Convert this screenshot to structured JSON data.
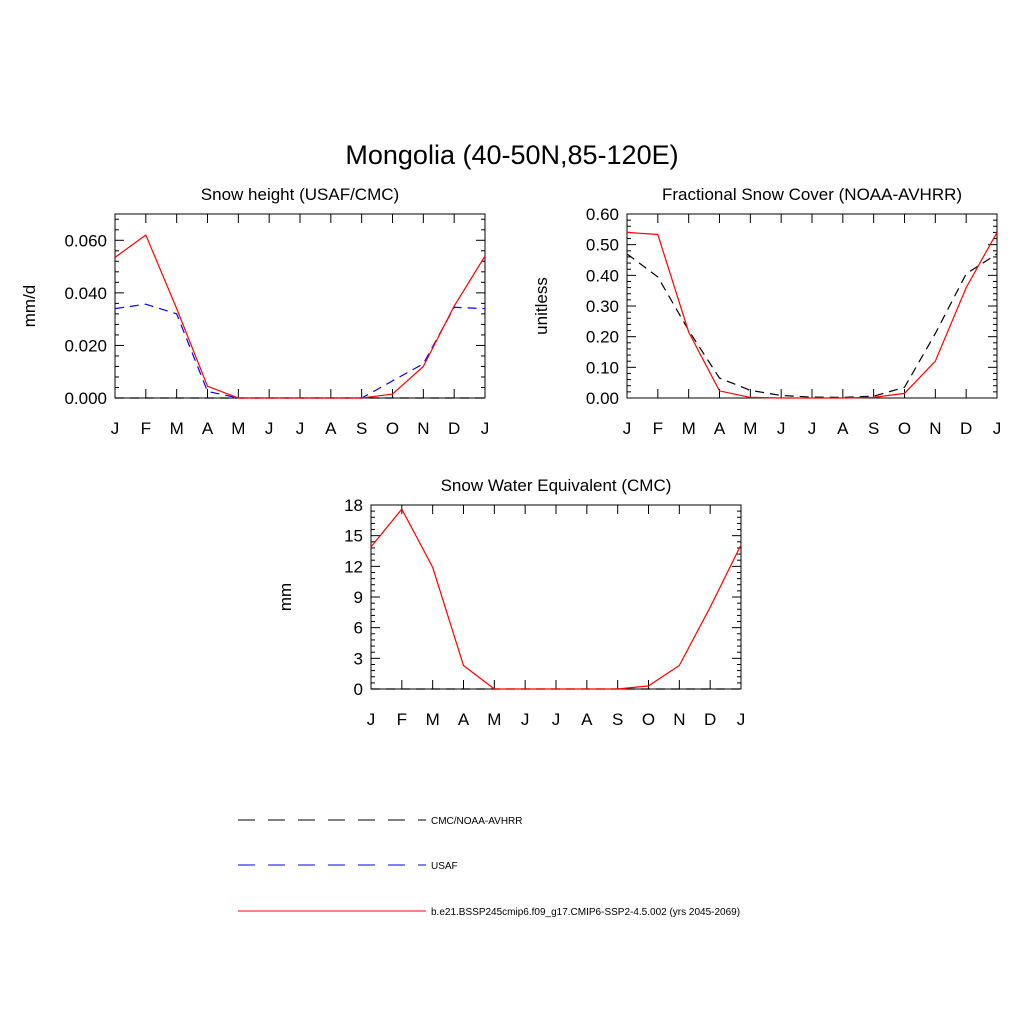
{
  "title": "Mongolia (40-50N,85-120E)",
  "colors": {
    "cmc": "#000000",
    "usaf": "#0000ff",
    "model": "#ff0000",
    "axis": "#000000"
  },
  "chart_data": [
    {
      "type": "line",
      "title": "Snow height (USAF/CMC)",
      "xlabel": "",
      "ylabel": "mm/d",
      "categories": [
        "J",
        "F",
        "M",
        "A",
        "M",
        "J",
        "J",
        "A",
        "S",
        "O",
        "N",
        "D",
        "J"
      ],
      "ylim": [
        0,
        0.07
      ],
      "yticks": [
        0,
        0.02,
        0.04,
        0.06
      ],
      "ytick_labels": [
        "0.000",
        "0.020",
        "0.040",
        "0.060"
      ],
      "series": [
        {
          "name": "CMC/NOAA-AVHRR",
          "style": "dashed",
          "color_key": "cmc",
          "values": [
            0,
            0,
            0,
            0,
            0,
            0,
            0,
            0,
            0,
            0,
            0,
            0,
            0
          ]
        },
        {
          "name": "USAF",
          "style": "dashed",
          "color_key": "usaf",
          "values": [
            0.034,
            0.0357,
            0.032,
            0.0025,
            0,
            0,
            0,
            0,
            0,
            0.0065,
            0.013,
            0.0345,
            0.034
          ]
        },
        {
          "name": "b.e21.BSSP245cmip6.f09_g17.CMIP6-SSP2-4.5.002 (yrs 2045-2069)",
          "style": "solid",
          "color_key": "model",
          "values": [
            0.0535,
            0.062,
            0.034,
            0.0045,
            0,
            0,
            0,
            0,
            0,
            0.0015,
            0.012,
            0.035,
            0.054
          ]
        }
      ]
    },
    {
      "type": "line",
      "title": "Fractional Snow Cover (NOAA-AVHRR)",
      "xlabel": "",
      "ylabel": "unitless",
      "categories": [
        "J",
        "F",
        "M",
        "A",
        "M",
        "J",
        "J",
        "A",
        "S",
        "O",
        "N",
        "D",
        "J"
      ],
      "ylim": [
        0,
        0.6
      ],
      "yticks": [
        0,
        0.1,
        0.2,
        0.3,
        0.4,
        0.5,
        0.6
      ],
      "ytick_labels": [
        "0.00",
        "0.10",
        "0.20",
        "0.30",
        "0.40",
        "0.50",
        "0.60"
      ],
      "series": [
        {
          "name": "CMC/NOAA-AVHRR",
          "style": "dashed",
          "color_key": "cmc",
          "values": [
            0.47,
            0.395,
            0.22,
            0.065,
            0.025,
            0.008,
            0.003,
            0.002,
            0.006,
            0.035,
            0.21,
            0.405,
            0.47
          ]
        },
        {
          "name": "b.e21.BSSP245cmip6.f09_g17.CMIP6-SSP2-4.5.002 (yrs 2045-2069)",
          "style": "solid",
          "color_key": "model",
          "values": [
            0.54,
            0.533,
            0.215,
            0.023,
            0.002,
            0,
            0,
            0,
            0.002,
            0.015,
            0.12,
            0.36,
            0.54
          ]
        }
      ]
    },
    {
      "type": "line",
      "title": "Snow Water Equivalent (CMC)",
      "xlabel": "",
      "ylabel": "mm",
      "categories": [
        "J",
        "F",
        "M",
        "A",
        "M",
        "J",
        "J",
        "A",
        "S",
        "O",
        "N",
        "D",
        "J"
      ],
      "ylim": [
        0,
        18
      ],
      "yticks": [
        0,
        3,
        6,
        9,
        12,
        15,
        18
      ],
      "ytick_labels": [
        "0",
        "3",
        "6",
        "9",
        "12",
        "15",
        "18"
      ],
      "series": [
        {
          "name": "CMC/NOAA-AVHRR",
          "style": "dashed",
          "color_key": "cmc",
          "values": [
            0,
            0,
            0,
            0,
            0,
            0,
            0,
            0,
            0,
            0,
            0,
            0,
            0
          ]
        },
        {
          "name": "b.e21.BSSP245cmip6.f09_g17.CMIP6-SSP2-4.5.002 (yrs 2045-2069)",
          "style": "solid",
          "color_key": "model",
          "values": [
            13.9,
            17.6,
            11.9,
            2.3,
            0,
            0,
            0,
            0,
            0,
            0.3,
            2.3,
            8.0,
            14.1
          ]
        }
      ]
    }
  ],
  "legend": [
    {
      "label": "CMC/NOAA-AVHRR",
      "style": "dashed",
      "color_key": "cmc"
    },
    {
      "label": "USAF",
      "style": "dashed",
      "color_key": "usaf"
    },
    {
      "label": "b.e21.BSSP245cmip6.f09_g17.CMIP6-SSP2-4.5.002 (yrs 2045-2069)",
      "style": "solid",
      "color_key": "model"
    }
  ]
}
